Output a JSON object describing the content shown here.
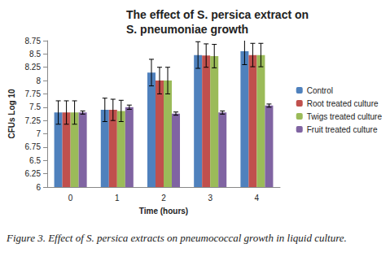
{
  "chart_data": {
    "type": "bar",
    "title": "The effect of S. persica extract on S. pneumoniae growth",
    "caption": "Figure 3. Effect of S. persica extracts on pneumococcal growth in liquid culture.",
    "x_label": "Time (hours)",
    "y_label": "CFUs Log 10",
    "categories": [
      "0",
      "1",
      "2",
      "3",
      "4"
    ],
    "series": [
      {
        "name": "Control",
        "color": "#4f81bd",
        "values": [
          7.4,
          7.45,
          8.15,
          8.48,
          8.55
        ],
        "errors": [
          0.22,
          0.22,
          0.25,
          0.25,
          0.25
        ]
      },
      {
        "name": "Root treated culture",
        "color": "#c0504d",
        "values": [
          7.4,
          7.45,
          8.0,
          8.47,
          8.48
        ],
        "errors": [
          0.22,
          0.2,
          0.25,
          0.22,
          0.22
        ]
      },
      {
        "name": "Twigs treated culture",
        "color": "#9bbb59",
        "values": [
          7.4,
          7.43,
          8.0,
          8.46,
          8.48
        ],
        "errors": [
          0.22,
          0.2,
          0.25,
          0.22,
          0.22
        ]
      },
      {
        "name": "Fruit treated culture",
        "color": "#8064a2",
        "values": [
          7.4,
          7.5,
          7.38,
          7.4,
          7.53
        ],
        "errors": [
          0.03,
          0.04,
          0.03,
          0.03,
          0.03
        ]
      }
    ],
    "ylim": [
      6,
      8.75
    ],
    "yticks": [
      6,
      6.25,
      6.5,
      6.75,
      7,
      7.25,
      7.5,
      7.75,
      8,
      8.25,
      8.5,
      8.75
    ],
    "grid": false,
    "legend": "right"
  }
}
